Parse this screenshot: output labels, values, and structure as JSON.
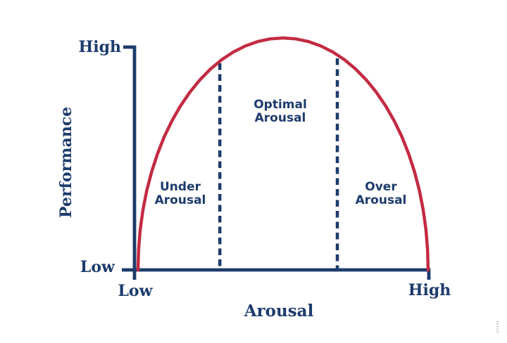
{
  "colors": {
    "navy": "#1d3b6c",
    "red": "#c32b42",
    "background": "#ffffff"
  },
  "axes": {
    "y_label": "Performance",
    "x_label": "Arousal",
    "y_tick_top": "High",
    "y_tick_bottom": "Low",
    "x_tick_left": "Low",
    "x_tick_right": "High"
  },
  "regions": {
    "under": {
      "line1": "Under",
      "line2": "Arousal"
    },
    "optimal": {
      "line1": "Optimal",
      "line2": "Arousal"
    },
    "over": {
      "line1": "Over",
      "line2": "Arousal"
    }
  },
  "chart_data": {
    "type": "line",
    "title": "",
    "xlabel": "Arousal",
    "ylabel": "Performance",
    "x_tick_labels": [
      "Low",
      "High"
    ],
    "y_tick_labels": [
      "Low",
      "High"
    ],
    "x_range_normalized": [
      0,
      1
    ],
    "y_range_normalized": [
      0,
      1
    ],
    "grid": false,
    "legend": false,
    "series": [
      {
        "name": "performance-arousal-curve",
        "color": "#c32b42",
        "shape": "inverted-U (semi-ellipse)",
        "points": [
          [
            0.0,
            0.0
          ],
          [
            0.0019,
            0.0872
          ],
          [
            0.0076,
            0.1736
          ],
          [
            0.017,
            0.2588
          ],
          [
            0.0302,
            0.342
          ],
          [
            0.0468,
            0.4226
          ],
          [
            0.067,
            0.5
          ],
          [
            0.0904,
            0.5736
          ],
          [
            0.117,
            0.6428
          ],
          [
            0.1464,
            0.7071
          ],
          [
            0.1786,
            0.766
          ],
          [
            0.2132,
            0.8192
          ],
          [
            0.25,
            0.866
          ],
          [
            0.2887,
            0.9063
          ],
          [
            0.329,
            0.9397
          ],
          [
            0.3706,
            0.9659
          ],
          [
            0.4132,
            0.9848
          ],
          [
            0.4564,
            0.9962
          ],
          [
            0.5,
            1.0
          ],
          [
            0.5436,
            0.9962
          ],
          [
            0.5868,
            0.9848
          ],
          [
            0.6294,
            0.9659
          ],
          [
            0.671,
            0.9397
          ],
          [
            0.7113,
            0.9063
          ],
          [
            0.75,
            0.866
          ],
          [
            0.7868,
            0.8192
          ],
          [
            0.8214,
            0.766
          ],
          [
            0.8536,
            0.7071
          ],
          [
            0.883,
            0.6428
          ],
          [
            0.9096,
            0.5736
          ],
          [
            0.933,
            0.5
          ],
          [
            0.9532,
            0.4226
          ],
          [
            0.9698,
            0.342
          ],
          [
            0.983,
            0.2588
          ],
          [
            0.9924,
            0.1736
          ],
          [
            0.9981,
            0.0872
          ],
          [
            1.0,
            0.0
          ]
        ]
      }
    ],
    "reference_lines": [
      {
        "x": 0.282,
        "y_bottom": 0.0,
        "y_top": 0.891,
        "style": "dashed",
        "color": "#1d3b6c"
      },
      {
        "x": 0.687,
        "y_bottom": 0.0,
        "y_top": 0.912,
        "style": "dashed",
        "color": "#1d3b6c"
      }
    ],
    "annotations": [
      {
        "text": "Under Arousal",
        "x": 0.146,
        "y": 0.327
      },
      {
        "text": "Optimal Arousal",
        "x": 0.49,
        "y": 0.685
      },
      {
        "text": "Over Arousal",
        "x": 0.837,
        "y": 0.327
      }
    ]
  }
}
